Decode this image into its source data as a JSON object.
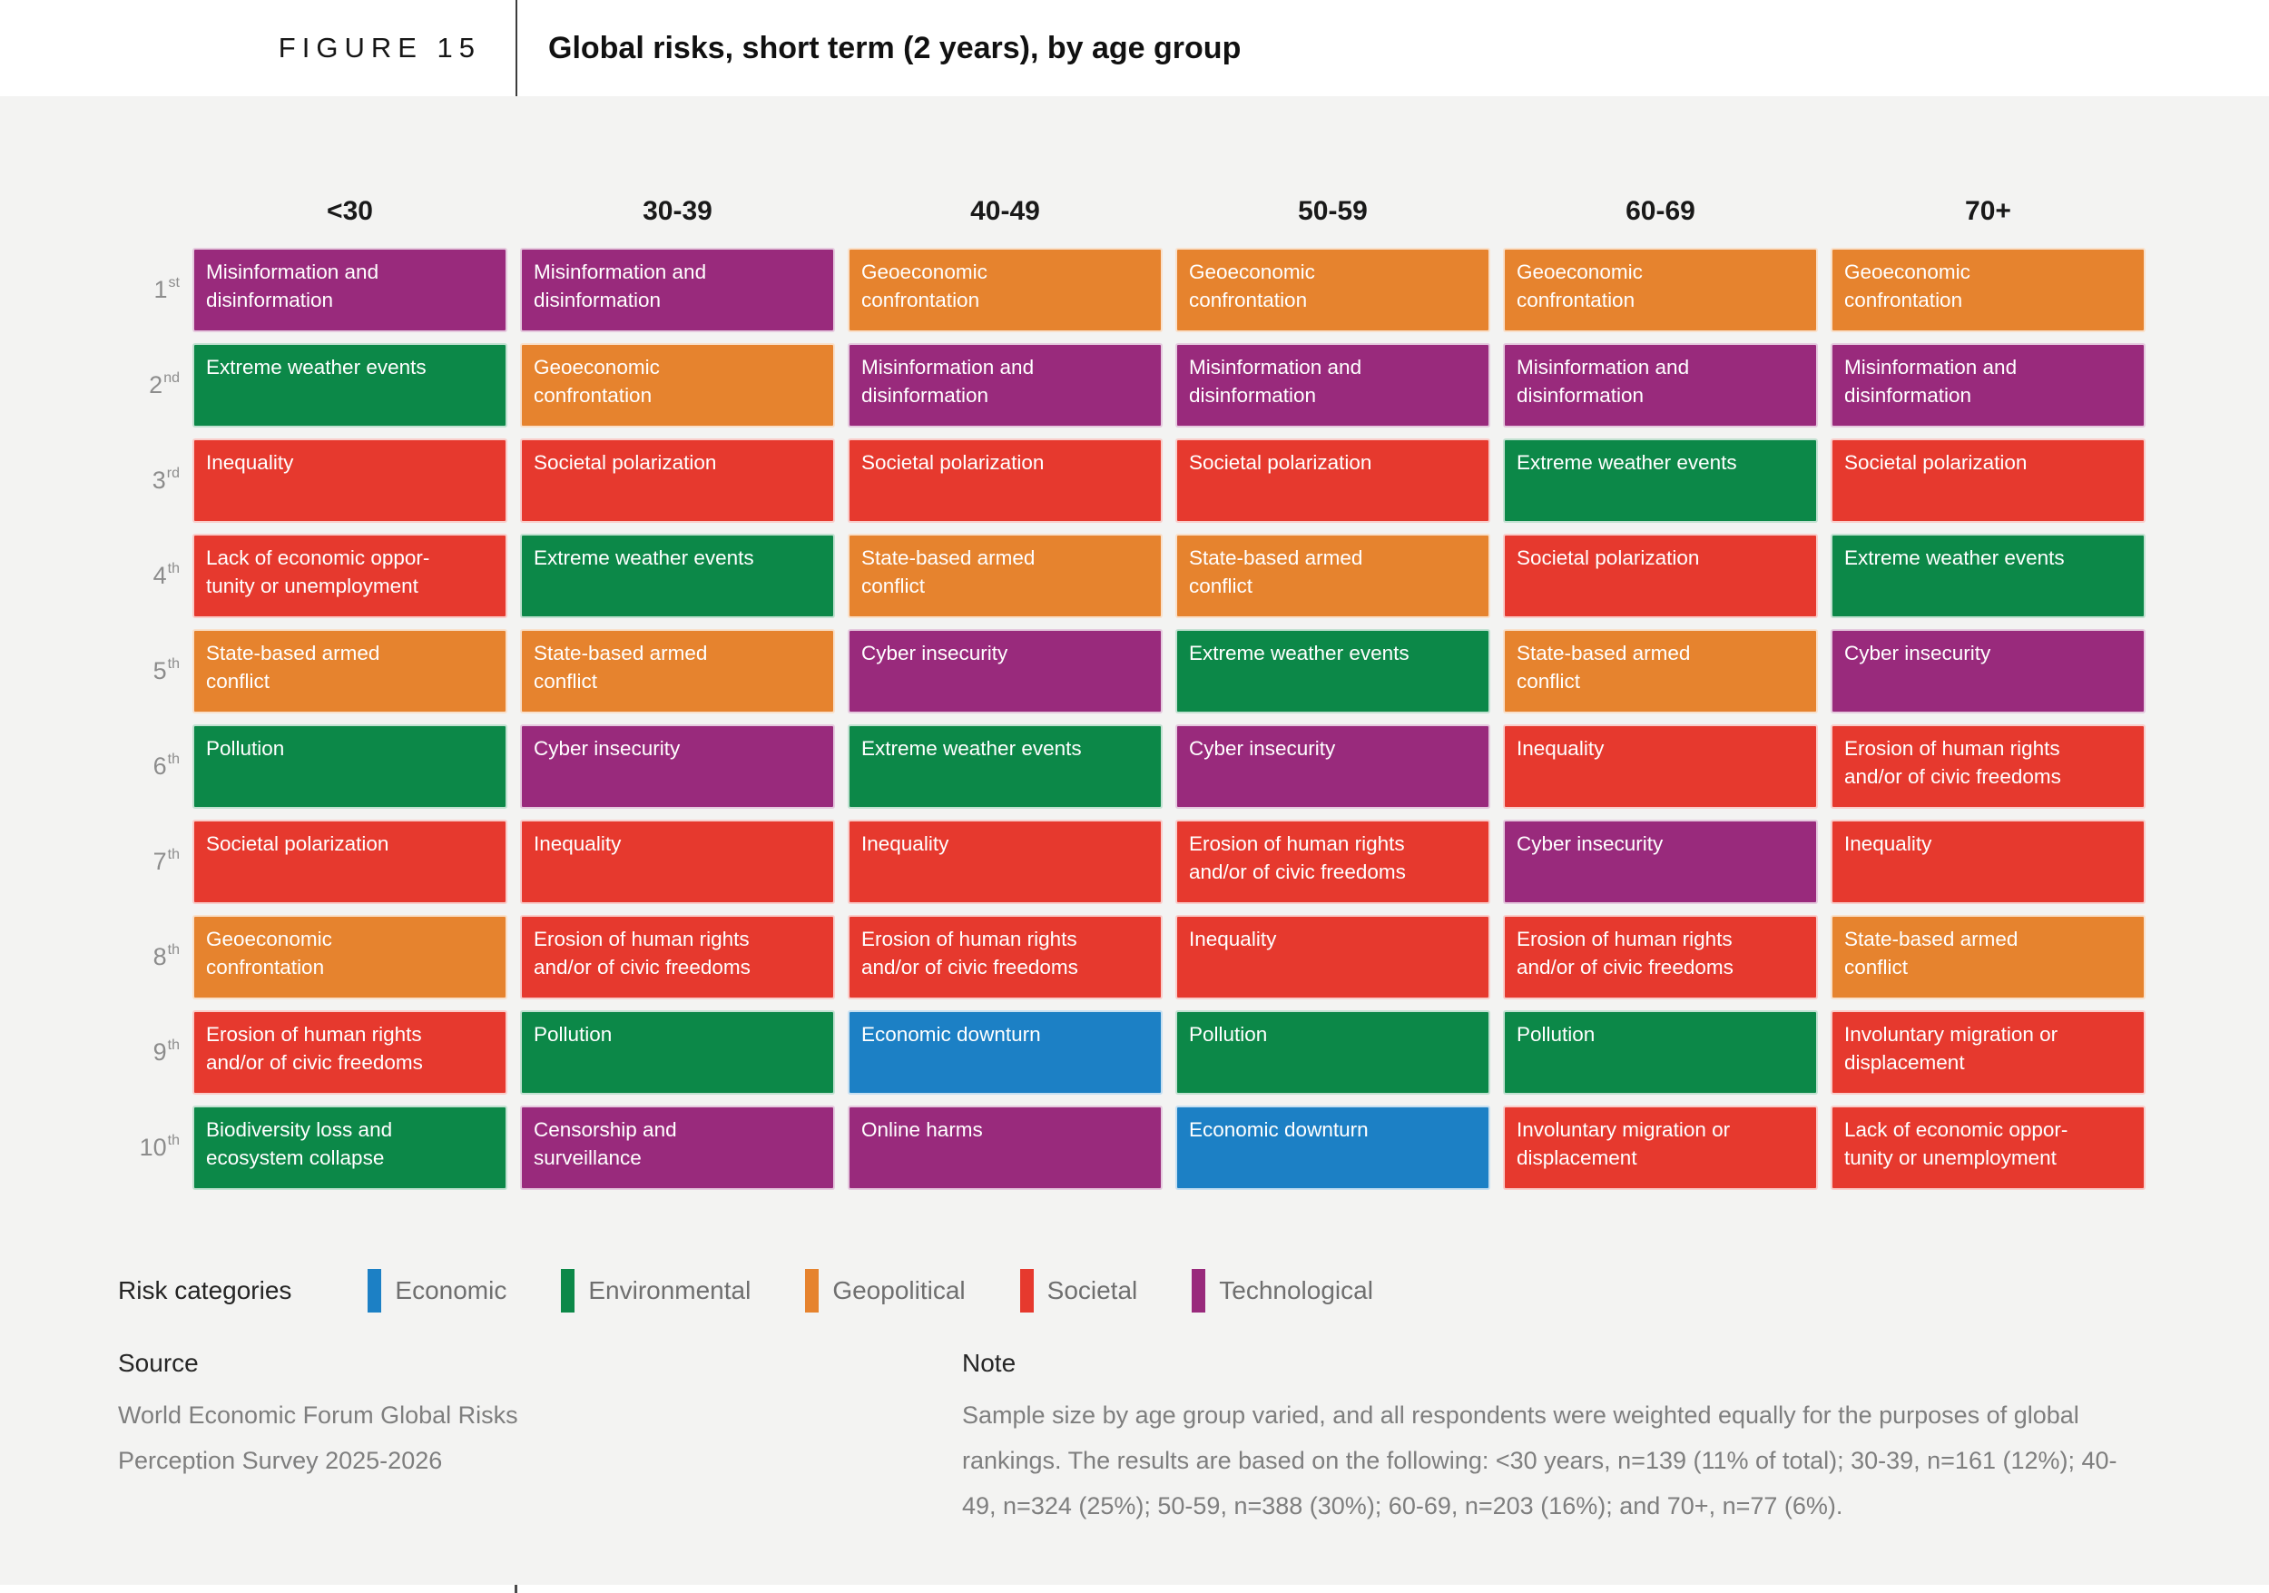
{
  "figure_header": {
    "label": "FIGURE 15",
    "title": "Global risks, short term (2 years), by age group"
  },
  "categories": {
    "Economic": "#1c80c5",
    "Environmental": "#0c8848",
    "Geopolitical": "#e6832e",
    "Societal": "#e6392e",
    "Technological": "#992a7c"
  },
  "chart_data": {
    "type": "table",
    "title": "Global risks, short term (2 years), by age group",
    "columns": [
      "<30",
      "30-39",
      "40-49",
      "50-59",
      "60-69",
      "70+"
    ],
    "rows": [
      {
        "rank": "1",
        "suffix": "st",
        "cells": [
          {
            "label": "Misinformation and\ndisinformation",
            "category": "Technological"
          },
          {
            "label": "Misinformation and\ndisinformation",
            "category": "Technological"
          },
          {
            "label": "Geoeconomic\nconfrontation",
            "category": "Geopolitical"
          },
          {
            "label": "Geoeconomic\nconfrontation",
            "category": "Geopolitical"
          },
          {
            "label": "Geoeconomic\nconfrontation",
            "category": "Geopolitical"
          },
          {
            "label": "Geoeconomic\nconfrontation",
            "category": "Geopolitical"
          }
        ]
      },
      {
        "rank": "2",
        "suffix": "nd",
        "cells": [
          {
            "label": "Extreme weather events",
            "category": "Environmental"
          },
          {
            "label": "Geoeconomic\nconfrontation",
            "category": "Geopolitical"
          },
          {
            "label": "Misinformation and\ndisinformation",
            "category": "Technological"
          },
          {
            "label": "Misinformation and\ndisinformation",
            "category": "Technological"
          },
          {
            "label": "Misinformation and\ndisinformation",
            "category": "Technological"
          },
          {
            "label": "Misinformation and\ndisinformation",
            "category": "Technological"
          }
        ]
      },
      {
        "rank": "3",
        "suffix": "rd",
        "cells": [
          {
            "label": "Inequality",
            "category": "Societal"
          },
          {
            "label": "Societal polarization",
            "category": "Societal"
          },
          {
            "label": "Societal polarization",
            "category": "Societal"
          },
          {
            "label": "Societal polarization",
            "category": "Societal"
          },
          {
            "label": "Extreme weather events",
            "category": "Environmental"
          },
          {
            "label": "Societal polarization",
            "category": "Societal"
          }
        ]
      },
      {
        "rank": "4",
        "suffix": "th",
        "cells": [
          {
            "label": "Lack of economic oppor-\ntunity or unemployment",
            "category": "Societal"
          },
          {
            "label": "Extreme weather events",
            "category": "Environmental"
          },
          {
            "label": "State-based armed\nconflict",
            "category": "Geopolitical"
          },
          {
            "label": "State-based armed\nconflict",
            "category": "Geopolitical"
          },
          {
            "label": "Societal polarization",
            "category": "Societal"
          },
          {
            "label": "Extreme weather events",
            "category": "Environmental"
          }
        ]
      },
      {
        "rank": "5",
        "suffix": "th",
        "cells": [
          {
            "label": "State-based armed\nconflict",
            "category": "Geopolitical"
          },
          {
            "label": "State-based armed\nconflict",
            "category": "Geopolitical"
          },
          {
            "label": "Cyber insecurity",
            "category": "Technological"
          },
          {
            "label": "Extreme weather events",
            "category": "Environmental"
          },
          {
            "label": "State-based armed\nconflict",
            "category": "Geopolitical"
          },
          {
            "label": "Cyber insecurity",
            "category": "Technological"
          }
        ]
      },
      {
        "rank": "6",
        "suffix": "th",
        "cells": [
          {
            "label": "Pollution",
            "category": "Environmental"
          },
          {
            "label": "Cyber insecurity",
            "category": "Technological"
          },
          {
            "label": "Extreme weather events",
            "category": "Environmental"
          },
          {
            "label": "Cyber insecurity",
            "category": "Technological"
          },
          {
            "label": "Inequality",
            "category": "Societal"
          },
          {
            "label": "Erosion of human rights\nand/or of civic freedoms",
            "category": "Societal"
          }
        ]
      },
      {
        "rank": "7",
        "suffix": "th",
        "cells": [
          {
            "label": "Societal polarization",
            "category": "Societal"
          },
          {
            "label": "Inequality",
            "category": "Societal"
          },
          {
            "label": "Inequality",
            "category": "Societal"
          },
          {
            "label": "Erosion of human rights\nand/or of civic freedoms",
            "category": "Societal"
          },
          {
            "label": "Cyber insecurity",
            "category": "Technological"
          },
          {
            "label": "Inequality",
            "category": "Societal"
          }
        ]
      },
      {
        "rank": "8",
        "suffix": "th",
        "cells": [
          {
            "label": "Geoeconomic\nconfrontation",
            "category": "Geopolitical"
          },
          {
            "label": "Erosion of human rights\nand/or of civic freedoms",
            "category": "Societal"
          },
          {
            "label": "Erosion of human rights\nand/or of civic freedoms",
            "category": "Societal"
          },
          {
            "label": "Inequality",
            "category": "Societal"
          },
          {
            "label": "Erosion of human rights\nand/or of civic freedoms",
            "category": "Societal"
          },
          {
            "label": "State-based armed\nconflict",
            "category": "Geopolitical"
          }
        ]
      },
      {
        "rank": "9",
        "suffix": "th",
        "cells": [
          {
            "label": "Erosion of human rights\nand/or of civic freedoms",
            "category": "Societal"
          },
          {
            "label": "Pollution",
            "category": "Environmental"
          },
          {
            "label": "Economic downturn",
            "category": "Economic"
          },
          {
            "label": "Pollution",
            "category": "Environmental"
          },
          {
            "label": "Pollution",
            "category": "Environmental"
          },
          {
            "label": "Involuntary migration or\ndisplacement",
            "category": "Societal"
          }
        ]
      },
      {
        "rank": "10",
        "suffix": "th",
        "cells": [
          {
            "label": "Biodiversity loss and\necosystem collapse",
            "category": "Environmental"
          },
          {
            "label": "Censorship and\nsurveillance",
            "category": "Technological"
          },
          {
            "label": "Online harms",
            "category": "Technological"
          },
          {
            "label": "Economic downturn",
            "category": "Economic"
          },
          {
            "label": "Involuntary migration or\ndisplacement",
            "category": "Societal"
          },
          {
            "label": "Lack of economic oppor-\ntunity or unemployment",
            "category": "Societal"
          }
        ]
      }
    ]
  },
  "legend": {
    "title": "Risk categories",
    "items": [
      {
        "label": "Economic",
        "category": "Economic"
      },
      {
        "label": "Environmental",
        "category": "Environmental"
      },
      {
        "label": "Geopolitical",
        "category": "Geopolitical"
      },
      {
        "label": "Societal",
        "category": "Societal"
      },
      {
        "label": "Technological",
        "category": "Technological"
      }
    ]
  },
  "source": {
    "heading": "Source",
    "text": "World Economic Forum Global Risks\nPerception Survey 2025-2026"
  },
  "note": {
    "heading": "Note",
    "text": "Sample size by age group varied, and all respondents were weighted equally for the purposes of global rankings. The results are based on the following: <30 years, n=139 (11% of total); 30-39, n=161 (12%); 40-49, n=324 (25%); 50-59, n=388 (30%); 60-69, n=203 (16%); and 70+, n=77 (6%)."
  }
}
